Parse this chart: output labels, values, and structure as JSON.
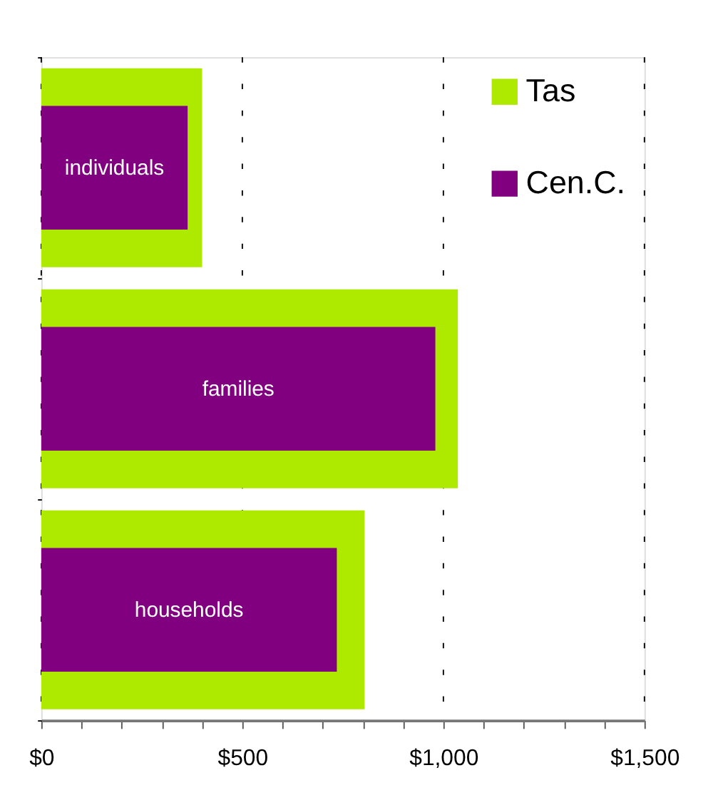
{
  "chart_data": {
    "type": "bar",
    "orientation": "horizontal",
    "categories": [
      "individuals",
      "families",
      "households"
    ],
    "series": [
      {
        "name": "Tas",
        "color": "#aeea00",
        "values": [
          400,
          1036,
          804
        ]
      },
      {
        "name": "Cen.C.",
        "color": "#800080",
        "values": [
          364,
          980,
          735
        ]
      }
    ],
    "xlim": [
      0,
      1500
    ],
    "xticks": [
      {
        "value": 0,
        "label": "$0"
      },
      {
        "value": 100,
        "label": null
      },
      {
        "value": 200,
        "label": null
      },
      {
        "value": 300,
        "label": null
      },
      {
        "value": 400,
        "label": null
      },
      {
        "value": 500,
        "label": "$500"
      },
      {
        "value": 600,
        "label": null
      },
      {
        "value": 700,
        "label": null
      },
      {
        "value": 800,
        "label": null
      },
      {
        "value": 900,
        "label": null
      },
      {
        "value": 1000,
        "label": "$1,000"
      },
      {
        "value": 1100,
        "label": null
      },
      {
        "value": 1200,
        "label": null
      },
      {
        "value": 1300,
        "label": null
      },
      {
        "value": 1400,
        "label": null
      },
      {
        "value": 1500,
        "label": "$1,500"
      }
    ],
    "grid": "x",
    "legend": "top right",
    "tick_labels": "x"
  }
}
